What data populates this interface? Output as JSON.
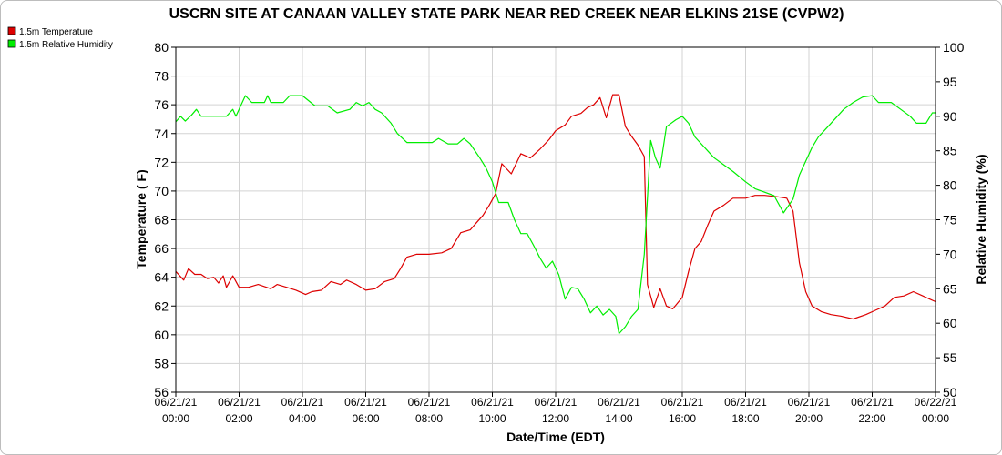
{
  "chart_data": {
    "type": "line",
    "title": "USCRN SITE AT CANAAN VALLEY STATE PARK NEAR RED CREEK NEAR ELKINS 21SE (CVPW2)",
    "xlabel": "Date/Time (EDT)",
    "ylabel_left": "Temperature ( F)",
    "ylabel_right": "Relative Humidity (%)",
    "ylim_left": [
      56,
      80
    ],
    "ylim_right": [
      50,
      100
    ],
    "y_ticks_left": [
      "56",
      "58",
      "60",
      "62",
      "64",
      "66",
      "68",
      "70",
      "72",
      "74",
      "76",
      "78",
      "80"
    ],
    "y_ticks_right": [
      "50",
      "55",
      "60",
      "65",
      "70",
      "75",
      "80",
      "85",
      "90",
      "95",
      "100"
    ],
    "x_range_hours": [
      0,
      24
    ],
    "x_ticks": [
      {
        "date": "06/21/21",
        "time": "00:00"
      },
      {
        "date": "06/21/21",
        "time": "02:00"
      },
      {
        "date": "06/21/21",
        "time": "04:00"
      },
      {
        "date": "06/21/21",
        "time": "06:00"
      },
      {
        "date": "06/21/21",
        "time": "08:00"
      },
      {
        "date": "06/21/21",
        "time": "10:00"
      },
      {
        "date": "06/21/21",
        "time": "12:00"
      },
      {
        "date": "06/21/21",
        "time": "14:00"
      },
      {
        "date": "06/21/21",
        "time": "16:00"
      },
      {
        "date": "06/21/21",
        "time": "18:00"
      },
      {
        "date": "06/21/21",
        "time": "20:00"
      },
      {
        "date": "06/21/21",
        "time": "22:00"
      },
      {
        "date": "06/22/21",
        "time": "00:00"
      }
    ],
    "grid": true,
    "legend_placement": "top-left",
    "series": [
      {
        "name": "1.5m Temperature",
        "color": "#dd0000",
        "axis": "left",
        "points": [
          [
            0,
            64.4
          ],
          [
            0.25,
            63.8
          ],
          [
            0.4,
            64.6
          ],
          [
            0.6,
            64.2
          ],
          [
            0.8,
            64.2
          ],
          [
            1.0,
            63.9
          ],
          [
            1.2,
            64.0
          ],
          [
            1.35,
            63.6
          ],
          [
            1.5,
            64.1
          ],
          [
            1.6,
            63.3
          ],
          [
            1.8,
            64.1
          ],
          [
            2.0,
            63.3
          ],
          [
            2.3,
            63.3
          ],
          [
            2.6,
            63.5
          ],
          [
            3.0,
            63.2
          ],
          [
            3.2,
            63.5
          ],
          [
            3.5,
            63.3
          ],
          [
            3.8,
            63.1
          ],
          [
            4.1,
            62.8
          ],
          [
            4.3,
            63.0
          ],
          [
            4.6,
            63.1
          ],
          [
            4.9,
            63.7
          ],
          [
            5.2,
            63.5
          ],
          [
            5.4,
            63.8
          ],
          [
            5.7,
            63.5
          ],
          [
            6.0,
            63.1
          ],
          [
            6.3,
            63.2
          ],
          [
            6.6,
            63.7
          ],
          [
            6.9,
            63.9
          ],
          [
            7.1,
            64.6
          ],
          [
            7.3,
            65.4
          ],
          [
            7.6,
            65.6
          ],
          [
            8.0,
            65.6
          ],
          [
            8.4,
            65.7
          ],
          [
            8.7,
            66.0
          ],
          [
            9.0,
            67.1
          ],
          [
            9.3,
            67.3
          ],
          [
            9.5,
            67.8
          ],
          [
            9.7,
            68.3
          ],
          [
            9.9,
            69.0
          ],
          [
            10.1,
            69.8
          ],
          [
            10.3,
            71.9
          ],
          [
            10.6,
            71.2
          ],
          [
            10.9,
            72.6
          ],
          [
            11.2,
            72.3
          ],
          [
            11.5,
            72.9
          ],
          [
            11.8,
            73.6
          ],
          [
            12.0,
            74.2
          ],
          [
            12.3,
            74.6
          ],
          [
            12.5,
            75.2
          ],
          [
            12.8,
            75.4
          ],
          [
            13.0,
            75.8
          ],
          [
            13.2,
            76.0
          ],
          [
            13.4,
            76.5
          ],
          [
            13.6,
            75.1
          ],
          [
            13.8,
            76.7
          ],
          [
            14.0,
            76.7
          ],
          [
            14.2,
            74.5
          ],
          [
            14.4,
            73.8
          ],
          [
            14.6,
            73.2
          ],
          [
            14.8,
            72.4
          ],
          [
            14.9,
            63.5
          ],
          [
            15.1,
            61.9
          ],
          [
            15.3,
            63.2
          ],
          [
            15.5,
            62.0
          ],
          [
            15.7,
            61.8
          ],
          [
            16.0,
            62.6
          ],
          [
            16.2,
            64.4
          ],
          [
            16.4,
            66.0
          ],
          [
            16.6,
            66.5
          ],
          [
            16.8,
            67.6
          ],
          [
            17.0,
            68.6
          ],
          [
            17.3,
            69.0
          ],
          [
            17.6,
            69.5
          ],
          [
            18.0,
            69.5
          ],
          [
            18.3,
            69.7
          ],
          [
            18.6,
            69.7
          ],
          [
            19.0,
            69.6
          ],
          [
            19.3,
            69.5
          ],
          [
            19.5,
            68.6
          ],
          [
            19.7,
            65.0
          ],
          [
            19.9,
            63.0
          ],
          [
            20.1,
            62.0
          ],
          [
            20.4,
            61.6
          ],
          [
            20.7,
            61.4
          ],
          [
            21.0,
            61.3
          ],
          [
            21.4,
            61.1
          ],
          [
            21.8,
            61.4
          ],
          [
            22.1,
            61.7
          ],
          [
            22.4,
            62.0
          ],
          [
            22.7,
            62.6
          ],
          [
            23.0,
            62.7
          ],
          [
            23.3,
            63.0
          ],
          [
            23.6,
            62.7
          ],
          [
            23.8,
            62.5
          ],
          [
            24.0,
            62.3
          ]
        ]
      },
      {
        "name": "1.5m Relative Humidity",
        "color": "#00ee00",
        "axis": "right",
        "points": [
          [
            0,
            89.2
          ],
          [
            0.15,
            90.0
          ],
          [
            0.3,
            89.3
          ],
          [
            0.5,
            90.2
          ],
          [
            0.65,
            91.0
          ],
          [
            0.8,
            90.0
          ],
          [
            1.2,
            90.0
          ],
          [
            1.6,
            90.0
          ],
          [
            1.8,
            91.0
          ],
          [
            1.9,
            90.0
          ],
          [
            2.05,
            91.5
          ],
          [
            2.2,
            93.0
          ],
          [
            2.4,
            92.0
          ],
          [
            2.8,
            92.0
          ],
          [
            2.9,
            93.0
          ],
          [
            3.0,
            92.0
          ],
          [
            3.4,
            92.0
          ],
          [
            3.6,
            93.0
          ],
          [
            4.0,
            93.0
          ],
          [
            4.4,
            91.5
          ],
          [
            4.8,
            91.5
          ],
          [
            5.1,
            90.5
          ],
          [
            5.5,
            91.0
          ],
          [
            5.7,
            92.0
          ],
          [
            5.9,
            91.5
          ],
          [
            6.1,
            92.0
          ],
          [
            6.3,
            91.0
          ],
          [
            6.5,
            90.5
          ],
          [
            6.8,
            89.0
          ],
          [
            7.0,
            87.5
          ],
          [
            7.3,
            86.2
          ],
          [
            7.7,
            86.2
          ],
          [
            8.1,
            86.2
          ],
          [
            8.3,
            86.8
          ],
          [
            8.6,
            86.0
          ],
          [
            8.9,
            86.0
          ],
          [
            9.1,
            86.8
          ],
          [
            9.3,
            86.0
          ],
          [
            9.6,
            84.0
          ],
          [
            9.8,
            82.5
          ],
          [
            10.0,
            80.5
          ],
          [
            10.2,
            77.5
          ],
          [
            10.5,
            77.5
          ],
          [
            10.7,
            75.0
          ],
          [
            10.9,
            73.0
          ],
          [
            11.1,
            73.0
          ],
          [
            11.3,
            71.3
          ],
          [
            11.5,
            69.5
          ],
          [
            11.7,
            68.0
          ],
          [
            11.9,
            69.0
          ],
          [
            12.1,
            67.0
          ],
          [
            12.3,
            63.5
          ],
          [
            12.5,
            65.2
          ],
          [
            12.7,
            65.0
          ],
          [
            12.9,
            63.5
          ],
          [
            13.1,
            61.5
          ],
          [
            13.3,
            62.5
          ],
          [
            13.5,
            61.2
          ],
          [
            13.7,
            62.0
          ],
          [
            13.9,
            61.0
          ],
          [
            14.0,
            58.5
          ],
          [
            14.2,
            59.5
          ],
          [
            14.4,
            61.0
          ],
          [
            14.6,
            62.0
          ],
          [
            14.8,
            70.0
          ],
          [
            15.0,
            86.5
          ],
          [
            15.15,
            84.0
          ],
          [
            15.3,
            82.5
          ],
          [
            15.5,
            88.5
          ],
          [
            15.8,
            89.5
          ],
          [
            16.0,
            90.0
          ],
          [
            16.2,
            89.0
          ],
          [
            16.4,
            87.0
          ],
          [
            16.6,
            86.0
          ],
          [
            16.8,
            85.0
          ],
          [
            17.0,
            84.0
          ],
          [
            17.3,
            83.0
          ],
          [
            17.6,
            82.0
          ],
          [
            18.0,
            80.5
          ],
          [
            18.3,
            79.5
          ],
          [
            18.6,
            79.0
          ],
          [
            18.9,
            78.5
          ],
          [
            19.2,
            76.0
          ],
          [
            19.5,
            78.0
          ],
          [
            19.7,
            81.5
          ],
          [
            19.9,
            83.5
          ],
          [
            20.1,
            85.5
          ],
          [
            20.3,
            87.0
          ],
          [
            20.6,
            88.5
          ],
          [
            20.9,
            90.0
          ],
          [
            21.1,
            91.0
          ],
          [
            21.4,
            92.0
          ],
          [
            21.7,
            92.8
          ],
          [
            22.0,
            93.0
          ],
          [
            22.2,
            92.0
          ],
          [
            22.6,
            92.0
          ],
          [
            22.9,
            91.0
          ],
          [
            23.2,
            90.0
          ],
          [
            23.4,
            89.0
          ],
          [
            23.7,
            89.0
          ],
          [
            23.9,
            90.5
          ],
          [
            24.0,
            90.5
          ]
        ]
      }
    ]
  }
}
